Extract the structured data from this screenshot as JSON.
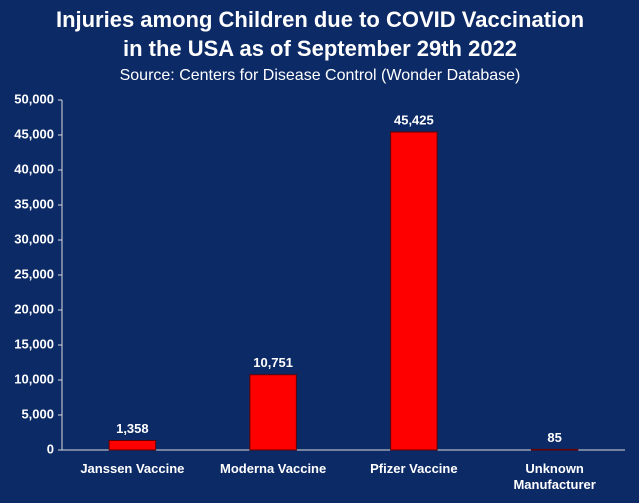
{
  "chart_data": {
    "type": "bar",
    "title": [
      "Injuries among Children due to COVID Vaccination",
      "in the USA as of September 29th 2022"
    ],
    "subtitle": "Source: Centers for Disease Control (Wonder Database)",
    "categories": [
      "Janssen Vaccine",
      "Moderna Vaccine",
      "Pfizer Vaccine",
      "Unknown Manufacturer"
    ],
    "values": [
      1358,
      10751,
      45425,
      85
    ],
    "value_labels": [
      "1,358",
      "10,751",
      "45,425",
      "85"
    ],
    "color": "#ff0000",
    "ylim": [
      0,
      50000
    ],
    "yticks": [
      0,
      {
        "value": 5000,
        "label": "5,000"
      },
      {
        "value": 10000,
        "label": "10,000"
      },
      {
        "value": 15000,
        "label": "15,000"
      },
      {
        "value": 20000,
        "label": "20,000"
      },
      {
        "value": 25000,
        "label": "25,000"
      },
      {
        "value": 30000,
        "label": "30,000"
      },
      {
        "value": 35000,
        "label": "35,000"
      },
      {
        "value": 40000,
        "label": "40,000"
      },
      {
        "value": 45000,
        "label": "45,000"
      },
      {
        "value": 50000,
        "label": "50,000"
      }
    ],
    "grid": false
  }
}
